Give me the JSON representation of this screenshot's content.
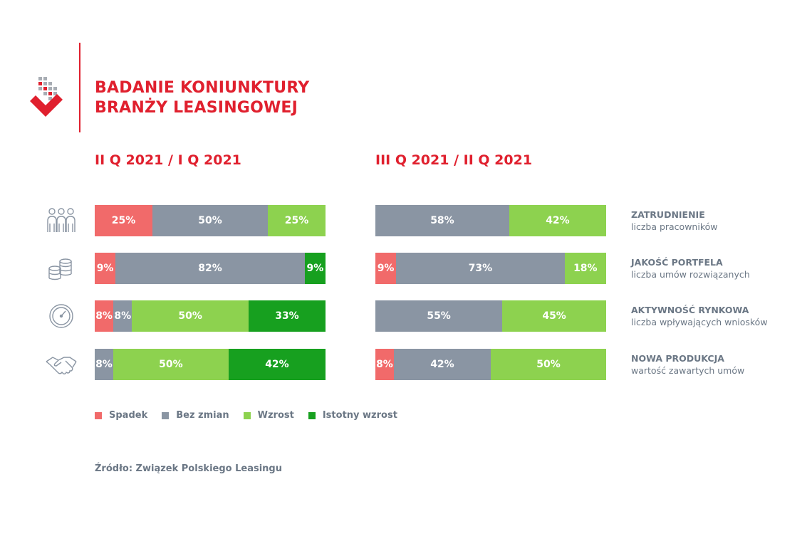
{
  "title": {
    "line1": "BADANIE KONIUNKTURY",
    "line2": "BRANŻY LEASINGOWEJ"
  },
  "colors": {
    "brand": "#e0202e",
    "Spadek": "#f16a6a",
    "Bez zmian": "#8a95a3",
    "Wzrost": "#8dd24f",
    "Istotny wzrost": "#17a01f"
  },
  "legend": [
    "Spadek",
    "Bez zmian",
    "Wzrost",
    "Istotny wzrost"
  ],
  "source": "Źródło: Związek Polskiego Leasingu",
  "rows": [
    {
      "name": "ZATRUDNIENIE",
      "sub": "liczba pracowników",
      "icon": "people-icon"
    },
    {
      "name": "JAKOŚĆ PORTFELA",
      "sub": "liczba umów rozwiązanych",
      "icon": "coins-icon"
    },
    {
      "name": "AKTYWNOŚĆ RYNKOWA",
      "sub": "liczba wpływających wniosków",
      "icon": "gauge-icon"
    },
    {
      "name": "NOWA PRODUKCJA",
      "sub": "wartość zawartych umów",
      "icon": "handshake-icon"
    }
  ],
  "chart_data": [
    {
      "type": "bar",
      "stacked": true,
      "orientation": "horizontal",
      "title": "II Q 2021 / I Q 2021",
      "categories": [
        "ZATRUDNIENIE",
        "JAKOŚĆ PORTFELA",
        "AKTYWNOŚĆ RYNKOWA",
        "NOWA PRODUKCJA"
      ],
      "series": [
        {
          "name": "Spadek",
          "values": [
            25,
            9,
            8,
            0
          ]
        },
        {
          "name": "Bez zmian",
          "values": [
            50,
            82,
            8,
            8
          ]
        },
        {
          "name": "Wzrost",
          "values": [
            25,
            0,
            50,
            50
          ]
        },
        {
          "name": "Istotny wzrost",
          "values": [
            0,
            9,
            33,
            42
          ]
        }
      ],
      "unit": "%",
      "legend_position": "bottom"
    },
    {
      "type": "bar",
      "stacked": true,
      "orientation": "horizontal",
      "title": "III Q 2021 / II Q 2021",
      "categories": [
        "ZATRUDNIENIE",
        "JAKOŚĆ PORTFELA",
        "AKTYWNOŚĆ RYNKOWA",
        "NOWA PRODUKCJA"
      ],
      "series": [
        {
          "name": "Spadek",
          "values": [
            0,
            9,
            0,
            8
          ]
        },
        {
          "name": "Bez zmian",
          "values": [
            58,
            73,
            55,
            42
          ]
        },
        {
          "name": "Wzrost",
          "values": [
            42,
            18,
            45,
            50
          ]
        },
        {
          "name": "Istotny wzrost",
          "values": [
            0,
            0,
            0,
            0
          ]
        }
      ],
      "unit": "%",
      "legend_position": "bottom"
    }
  ]
}
